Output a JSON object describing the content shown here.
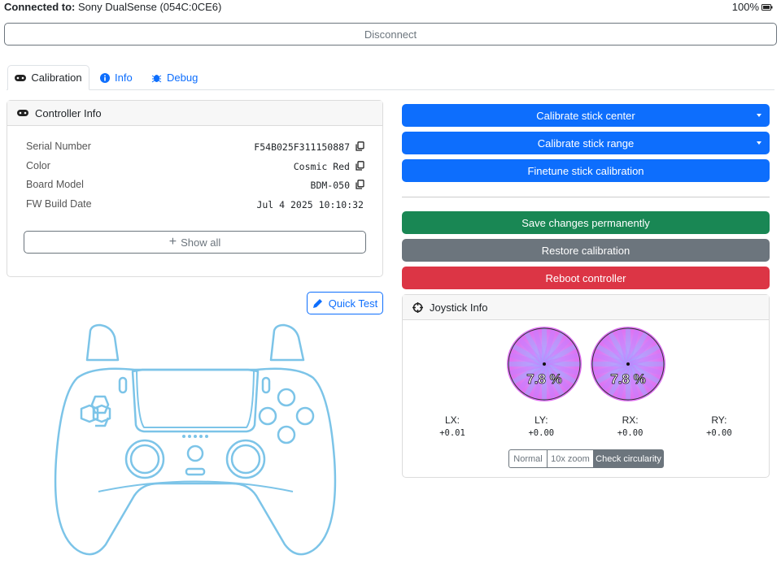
{
  "header": {
    "connected_label": "Connected to:",
    "device": "Sony DualSense (054C:0CE6)",
    "battery": "100%"
  },
  "disconnect": "Disconnect",
  "tabs": [
    "Calibration",
    "Info",
    "Debug"
  ],
  "controller_info": {
    "title": "Controller Info",
    "rows": [
      [
        "Serial Number",
        "F54B025F311150887"
      ],
      [
        "Color",
        "Cosmic Red"
      ],
      [
        "Board Model",
        "BDM-050"
      ],
      [
        "FW Build Date",
        "Jul 4 2025 10:10:32"
      ]
    ],
    "show_all": "Show all"
  },
  "quick_test": "Quick Test",
  "actions": [
    "Calibrate stick center",
    "Calibrate stick range",
    "Finetune stick calibration",
    "Save changes permanently",
    "Restore calibration",
    "Reboot controller"
  ],
  "joystick_info": {
    "title": "Joystick Info",
    "sticks": [
      "7.8 %",
      "7.8 %"
    ],
    "axes": [
      {
        "label": "LX:",
        "value": "+0.01"
      },
      {
        "label": "LY:",
        "value": "+0.00"
      },
      {
        "label": "RX:",
        "value": "+0.00"
      },
      {
        "label": "RY:",
        "value": "+0.00"
      }
    ],
    "modes": [
      "Normal",
      "10x zoom",
      "Check circularity"
    ]
  }
}
